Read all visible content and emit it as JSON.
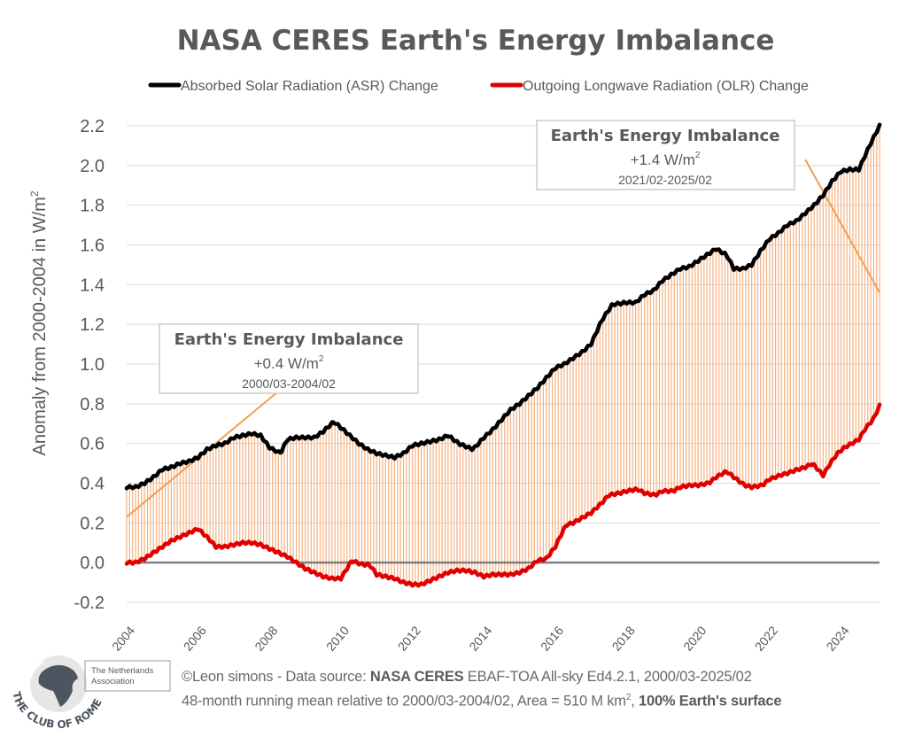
{
  "chart_data": {
    "type": "line",
    "title": "NASA CERES Earth's Energy Imbalance",
    "xlabel": "",
    "ylabel": "Anomaly from 2000-2004 in W/m",
    "ylabel_superscript": "2",
    "ylim": [
      -0.2,
      2.2
    ],
    "yticks": [
      "2.2",
      "2.0",
      "1.8",
      "1.6",
      "1.4",
      "1.2",
      "1.0",
      "0.8",
      "0.6",
      "0.4",
      "0.2",
      "0.0",
      "-0.2"
    ],
    "ytick_values": [
      2.2,
      2.0,
      1.8,
      1.6,
      1.4,
      1.2,
      1.0,
      0.8,
      0.6,
      0.4,
      0.2,
      0.0,
      -0.2
    ],
    "xlim": [
      2004,
      2025.08
    ],
    "xticks": [
      "2004",
      "2006",
      "2008",
      "2010",
      "2012",
      "2014",
      "2016",
      "2018",
      "2020",
      "2022",
      "2024"
    ],
    "xtick_values": [
      2004,
      2006,
      2008,
      2010,
      2012,
      2014,
      2016,
      2018,
      2020,
      2022,
      2024
    ],
    "grid": true,
    "legend_position": "top",
    "fill_between": {
      "color": "#f4b183",
      "description": "monthly vertical lines between ASR and OLR"
    },
    "series": [
      {
        "name": "Absorbed Solar Radiation (ASR) Change",
        "color": "#000000",
        "x": [
          2004.0,
          2004.25,
          2004.5,
          2004.75,
          2005.0,
          2005.25,
          2005.5,
          2005.75,
          2006.0,
          2006.25,
          2006.5,
          2006.75,
          2007.0,
          2007.25,
          2007.5,
          2007.75,
          2008.0,
          2008.3,
          2008.5,
          2008.75,
          2009.0,
          2009.25,
          2009.5,
          2009.8,
          2010.0,
          2010.25,
          2010.5,
          2010.75,
          2011.0,
          2011.25,
          2011.5,
          2011.75,
          2012.0,
          2012.25,
          2012.5,
          2012.75,
          2013.0,
          2013.3,
          2013.7,
          2014.0,
          2014.25,
          2014.5,
          2014.75,
          2015.0,
          2015.25,
          2015.5,
          2015.75,
          2016.0,
          2016.25,
          2016.5,
          2016.75,
          2017.0,
          2017.3,
          2017.6,
          2018.0,
          2018.25,
          2018.5,
          2018.75,
          2019.0,
          2019.25,
          2019.5,
          2019.75,
          2020.0,
          2020.25,
          2020.5,
          2020.8,
          2021.0,
          2021.25,
          2021.5,
          2021.75,
          2022.0,
          2022.25,
          2022.5,
          2022.75,
          2023.0,
          2023.25,
          2023.5,
          2023.75,
          2024.0,
          2024.25,
          2024.5,
          2024.8,
          2025.08
        ],
        "values": [
          0.38,
          0.38,
          0.4,
          0.43,
          0.47,
          0.48,
          0.5,
          0.51,
          0.53,
          0.57,
          0.59,
          0.6,
          0.63,
          0.64,
          0.65,
          0.64,
          0.58,
          0.55,
          0.62,
          0.63,
          0.63,
          0.63,
          0.66,
          0.71,
          0.68,
          0.64,
          0.6,
          0.57,
          0.55,
          0.54,
          0.53,
          0.55,
          0.59,
          0.6,
          0.61,
          0.62,
          0.64,
          0.6,
          0.57,
          0.63,
          0.67,
          0.72,
          0.77,
          0.8,
          0.84,
          0.88,
          0.93,
          0.98,
          1.0,
          1.03,
          1.06,
          1.1,
          1.22,
          1.3,
          1.31,
          1.31,
          1.35,
          1.37,
          1.42,
          1.45,
          1.48,
          1.49,
          1.52,
          1.55,
          1.58,
          1.55,
          1.48,
          1.48,
          1.5,
          1.57,
          1.63,
          1.66,
          1.7,
          1.72,
          1.76,
          1.8,
          1.85,
          1.92,
          1.97,
          1.98,
          1.98,
          2.1,
          2.2
        ]
      },
      {
        "name": "Outgoing Longwave Radiation (OLR) Change",
        "color": "#e00000",
        "x": [
          2004.0,
          2004.25,
          2004.5,
          2004.75,
          2005.0,
          2005.25,
          2005.5,
          2005.75,
          2006.0,
          2006.3,
          2006.5,
          2006.75,
          2007.0,
          2007.25,
          2007.5,
          2007.75,
          2008.0,
          2008.25,
          2008.5,
          2008.75,
          2009.0,
          2009.25,
          2009.5,
          2009.75,
          2010.0,
          2010.3,
          2010.6,
          2010.8,
          2011.0,
          2011.25,
          2011.5,
          2011.75,
          2012.0,
          2012.25,
          2012.5,
          2012.75,
          2013.0,
          2013.25,
          2013.5,
          2013.75,
          2014.0,
          2014.25,
          2014.5,
          2014.75,
          2015.0,
          2015.25,
          2015.5,
          2015.75,
          2016.0,
          2016.3,
          2016.5,
          2016.8,
          2017.0,
          2017.3,
          2017.5,
          2017.8,
          2018.0,
          2018.3,
          2018.5,
          2018.8,
          2019.0,
          2019.3,
          2019.5,
          2019.8,
          2020.0,
          2020.3,
          2020.5,
          2020.8,
          2021.0,
          2021.3,
          2021.5,
          2021.8,
          2022.0,
          2022.3,
          2022.5,
          2022.8,
          2023.0,
          2023.2,
          2023.5,
          2023.7,
          2023.9,
          2024.1,
          2024.3,
          2024.5,
          2024.7,
          2024.9,
          2025.08
        ],
        "values": [
          0.0,
          0.0,
          0.02,
          0.05,
          0.08,
          0.11,
          0.13,
          0.15,
          0.17,
          0.12,
          0.08,
          0.08,
          0.09,
          0.1,
          0.1,
          0.09,
          0.07,
          0.05,
          0.03,
          0.0,
          -0.03,
          -0.05,
          -0.07,
          -0.08,
          -0.08,
          0.01,
          -0.01,
          -0.01,
          -0.06,
          -0.07,
          -0.08,
          -0.1,
          -0.11,
          -0.11,
          -0.09,
          -0.07,
          -0.05,
          -0.04,
          -0.04,
          -0.05,
          -0.07,
          -0.06,
          -0.06,
          -0.06,
          -0.05,
          -0.03,
          0.01,
          0.02,
          0.08,
          0.19,
          0.2,
          0.23,
          0.25,
          0.3,
          0.34,
          0.35,
          0.36,
          0.37,
          0.35,
          0.34,
          0.36,
          0.36,
          0.38,
          0.39,
          0.39,
          0.4,
          0.43,
          0.46,
          0.43,
          0.39,
          0.38,
          0.39,
          0.42,
          0.44,
          0.45,
          0.47,
          0.48,
          0.5,
          0.44,
          0.5,
          0.55,
          0.58,
          0.6,
          0.62,
          0.68,
          0.72,
          0.79
        ]
      }
    ],
    "annotations": [
      {
        "title": "Earth's Energy Imbalance",
        "value": "+0.4 W/m",
        "value_superscript": "2",
        "period": "2000/03-2004/02",
        "trend_line": {
          "x": [
            2004.0,
            2008.3
          ],
          "y": [
            0.23,
            0.87
          ],
          "color": "#f0a050"
        }
      },
      {
        "title": "Earth's Energy Imbalance",
        "value": "+1.4 W/m",
        "value_superscript": "2",
        "period": "2021/02-2025/02",
        "trend_line": {
          "x": [
            2023.0,
            2025.08
          ],
          "y": [
            2.03,
            1.36
          ],
          "color": "#f0a050"
        }
      }
    ]
  },
  "footer": {
    "copyright_prefix": "©Leon simons - Data source: ",
    "source_bold": "NASA CERES",
    "source_rest": " EBAF-TOA All-sky Ed4.2.1, 2000/03-2025/02",
    "line2_prefix": "48-month running mean relative to 2000/03-2004/02, Area = 510 M km",
    "line2_sup": "2",
    "line2_sep": ", ",
    "line2_bold": "100% Earth's surface"
  },
  "logo": {
    "ring_text": "THE CLUB OF ROME",
    "association_line1": "The Netherlands",
    "association_line2": "Association"
  },
  "colors": {
    "asr": "#000000",
    "olr": "#e00000",
    "fill": "#f4b183",
    "trend": "#f0a050",
    "grid": "#d9d9d9",
    "zero_line": "#7f7f7f",
    "text": "#595959"
  }
}
